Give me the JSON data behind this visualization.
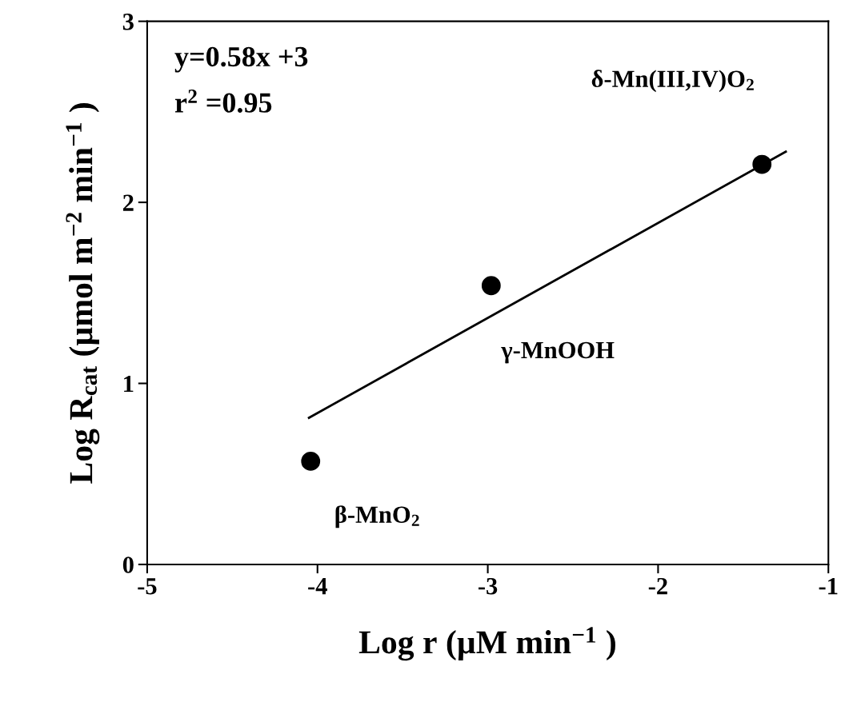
{
  "chart_data": {
    "type": "scatter",
    "xlabel": "Log r (µM min$^{−1}$ )",
    "ylabel": "Log R$_{cat}$ (µmol m$^{−2}$ min$^{−1}$ )",
    "series": [
      {
        "color": "#000000",
        "marker": "circle",
        "x": [
          -4.04,
          -2.98,
          -1.39
        ],
        "values": [
          0.57,
          1.54,
          2.21
        ]
      },
      {
        "type": "line",
        "color": "#000000",
        "marker": "none",
        "line_style": "solid",
        "x": [
          -4.05,
          -1.25
        ],
        "values": [
          0.81,
          2.28
        ]
      }
    ],
    "annotations": [
      "y=0.58x +3",
      "r$^{2}$ =0.95",
      {
        "text": "β-MnO$_{2}$",
        "x": -4.04,
        "y": 0.57
      },
      {
        "text": "γ-MnOOH",
        "x": -2.98,
        "y": 1.54
      },
      {
        "text": "δ-Mn(III,IV)O$_{2}$",
        "x": -1.39,
        "y": 2.21
      }
    ],
    "xlim": [
      -5,
      -1
    ],
    "xticks": [
      -5,
      -4,
      -3,
      -2,
      -1
    ],
    "ylim": [
      0,
      3
    ],
    "yticks": [
      0,
      1,
      2,
      3
    ],
    "grid": false,
    "legend": false
  }
}
